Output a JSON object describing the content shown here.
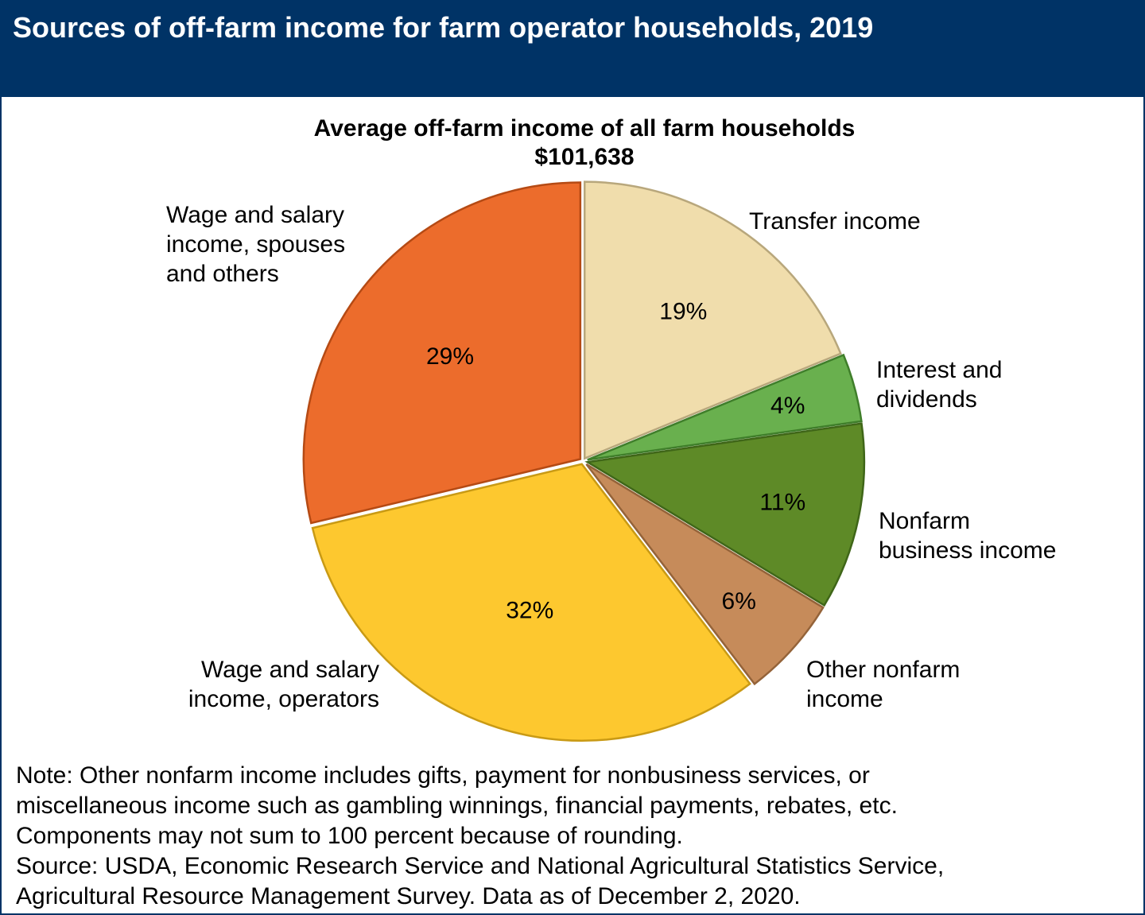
{
  "header": {
    "title": "Sources of off-farm income for farm operator households, 2019"
  },
  "chart_data": {
    "type": "pie",
    "title": "Average off-farm income of all farm households",
    "subtitle": "$101,638",
    "start_angle_deg": 0,
    "direction": "clockwise",
    "slices": [
      {
        "label": [
          "Transfer income"
        ],
        "value": 19,
        "value_label": "19%",
        "color": "#F0DDAC",
        "stroke": "#B8A77C"
      },
      {
        "label": [
          "Interest and",
          "dividends"
        ],
        "value": 4,
        "value_label": "4%",
        "color": "#69B04E",
        "stroke": "#3F7E2A"
      },
      {
        "label": [
          "Nonfarm",
          "business income"
        ],
        "value": 11,
        "value_label": "11%",
        "color": "#5E8A27",
        "stroke": "#3F6618"
      },
      {
        "label": [
          "Other nonfarm",
          "income"
        ],
        "value": 6,
        "value_label": "6%",
        "color": "#C68B5A",
        "stroke": "#946339"
      },
      {
        "label": [
          "Wage and salary",
          "income, operators"
        ],
        "value": 32,
        "value_label": "32%",
        "color": "#FDC82F",
        "stroke": "#C99A14"
      },
      {
        "label": [
          "Wage and salary",
          "income, spouses",
          "and others"
        ],
        "value": 29,
        "value_label": "29%",
        "color": "#EC6C2C",
        "stroke": "#B54A14"
      }
    ]
  },
  "notes": [
    "Note: Other nonfarm income includes gifts, payment for nonbusiness services, or",
    "miscellaneous income such as gambling winnings, financial payments, rebates, etc.",
    "Components may not sum to 100 percent because of rounding.",
    "Source: USDA, Economic Research Service and National Agricultural Statistics Service,",
    "Agricultural Resource Management Survey. Data as of December 2, 2020."
  ]
}
